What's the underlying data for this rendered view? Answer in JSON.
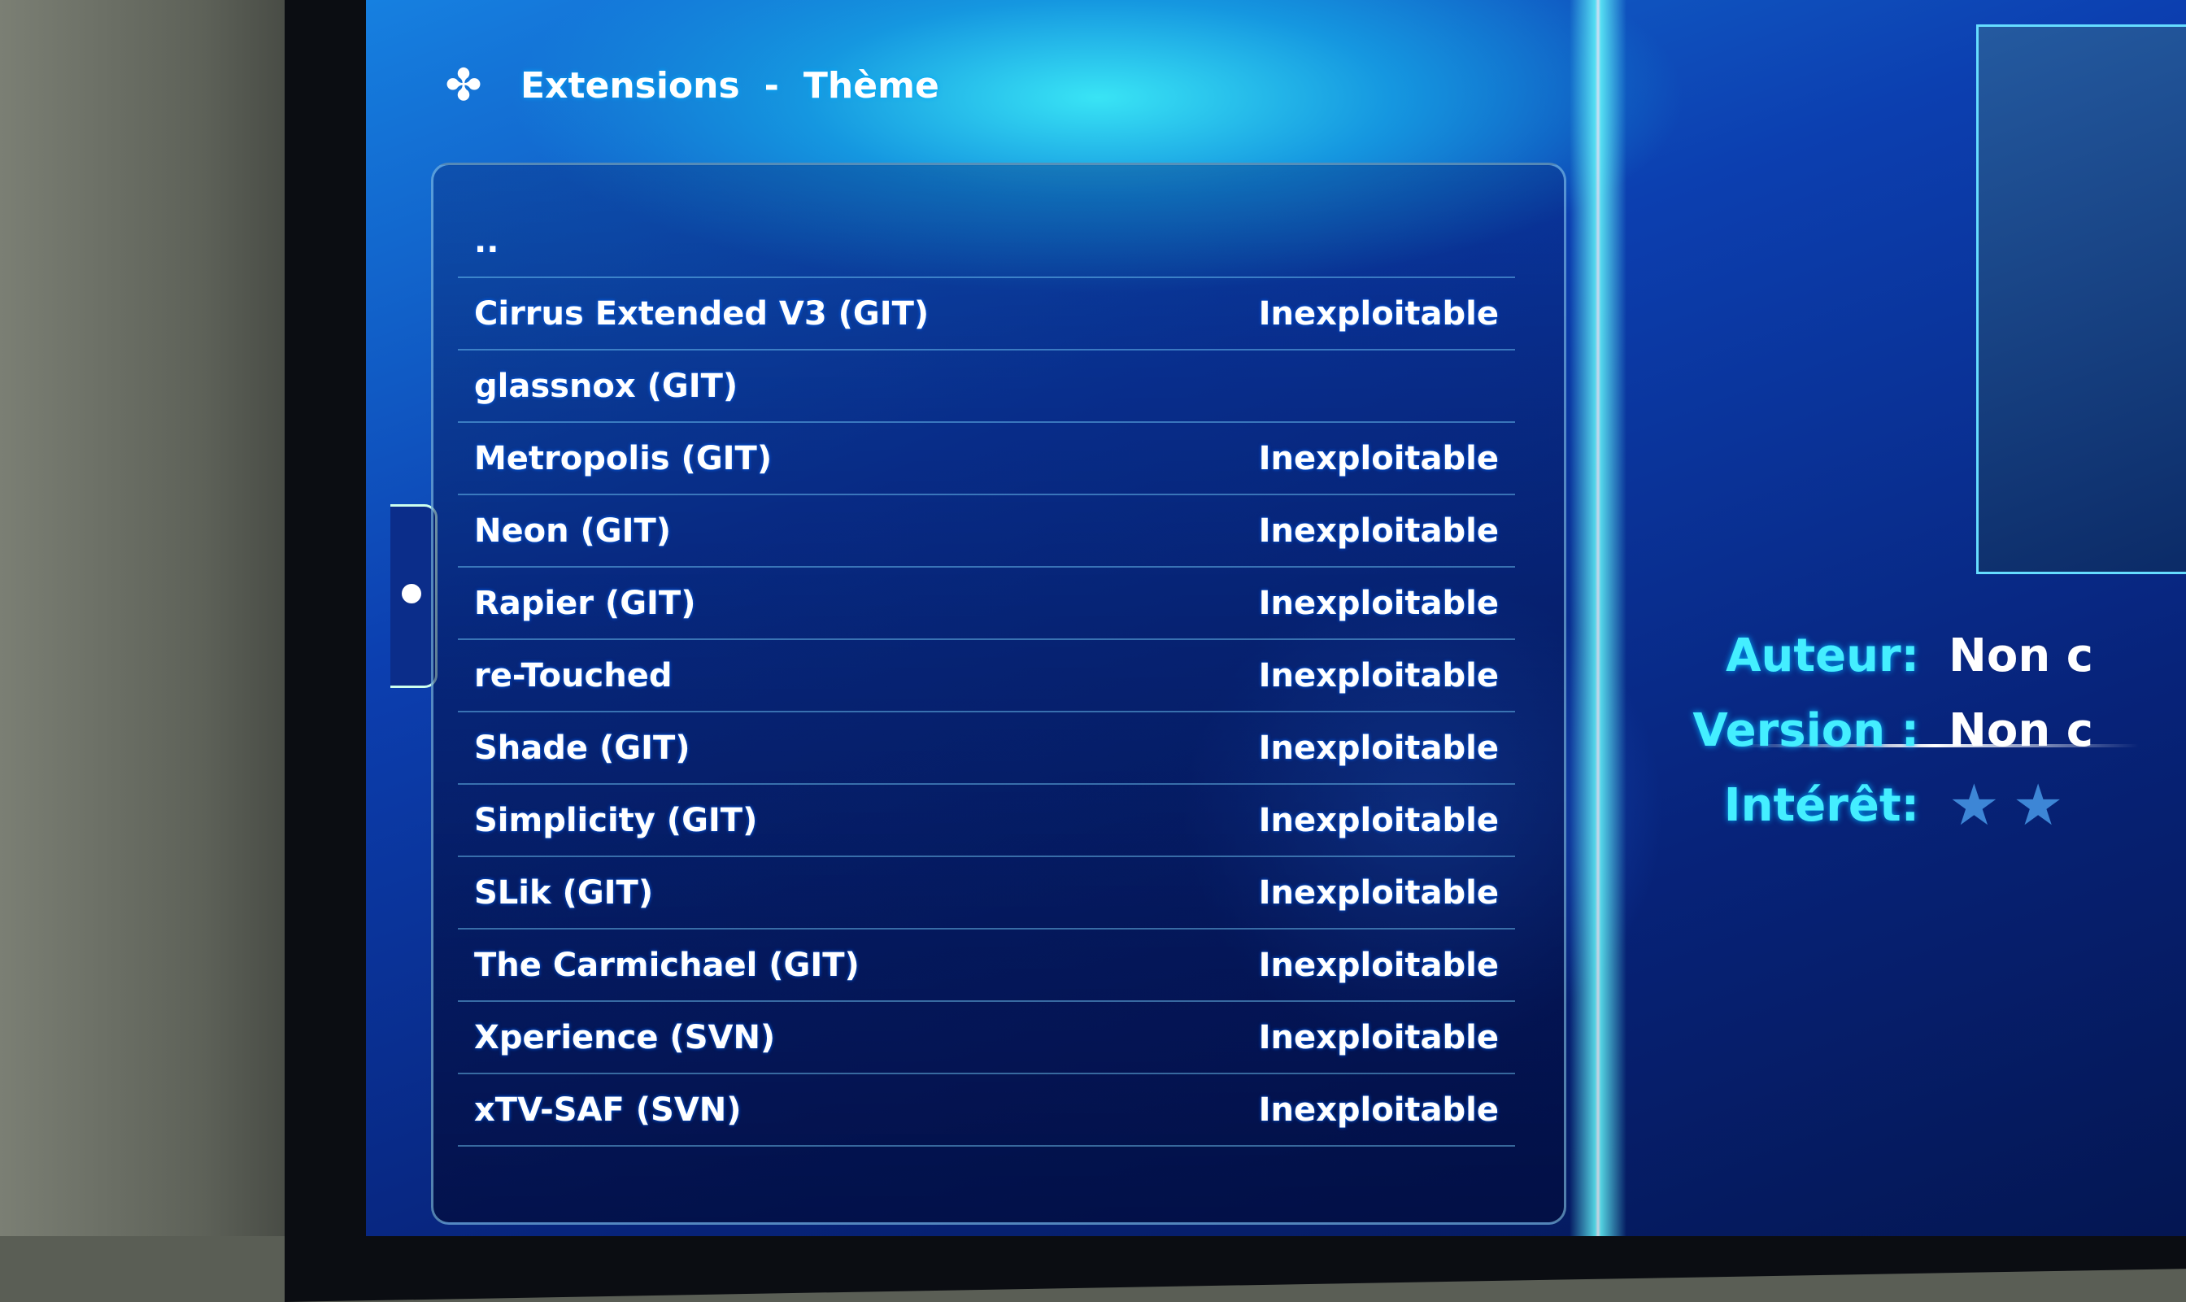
{
  "header": {
    "section": "Extensions",
    "separator": "-",
    "category": "Thème",
    "icon": "puzzle-icon"
  },
  "list": {
    "items": [
      {
        "label": "..",
        "status": ""
      },
      {
        "label": "Cirrus Extended V3 (GIT)",
        "status": "Inexploitable"
      },
      {
        "label": "glassnox (GIT)",
        "status": ""
      },
      {
        "label": "Metropolis (GIT)",
        "status": "Inexploitable"
      },
      {
        "label": "Neon (GIT)",
        "status": "Inexploitable"
      },
      {
        "label": "Rapier (GIT)",
        "status": "Inexploitable"
      },
      {
        "label": "re-Touched",
        "status": "Inexploitable"
      },
      {
        "label": "Shade (GIT)",
        "status": "Inexploitable"
      },
      {
        "label": "Simplicity (GIT)",
        "status": "Inexploitable"
      },
      {
        "label": "SLik (GIT)",
        "status": "Inexploitable"
      },
      {
        "label": "The Carmichael (GIT)",
        "status": "Inexploitable"
      },
      {
        "label": "Xperience (SVN)",
        "status": "Inexploitable"
      },
      {
        "label": "xTV-SAF (SVN)",
        "status": "Inexploitable"
      }
    ]
  },
  "info": {
    "author_label": "Auteur:",
    "author_value": "Non c",
    "version_label": "Version :",
    "version_value": "Non c",
    "rating_label": "Intérêt:",
    "rating_stars_visible": 2
  },
  "colors": {
    "accent": "#44eeff",
    "background": "#0c3fb0",
    "text": "#ffffff"
  }
}
